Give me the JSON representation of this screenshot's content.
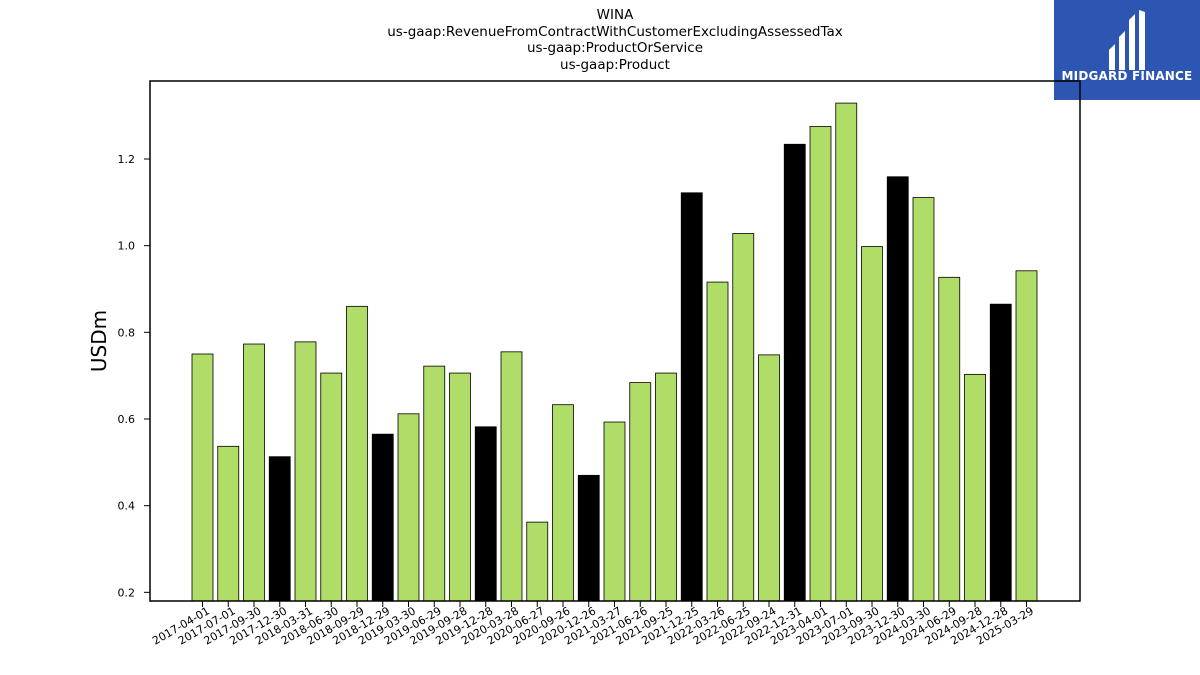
{
  "title_lines": [
    "WINA",
    "us-gaap:RevenueFromContractWithCustomerExcludingAssessedTax",
    "us-gaap:ProductOrService",
    "us-gaap:Product"
  ],
  "logo": {
    "text": "MIDGARD FINANCE",
    "bg_color": "#2d56b2"
  },
  "chart_data": {
    "type": "bar",
    "title": "WINA",
    "ylabel": "USDm",
    "xlabel": "",
    "ylim": [
      0.18,
      1.38
    ],
    "yticks": [
      0.2,
      0.4,
      0.6,
      0.8,
      1.0,
      1.2
    ],
    "grid": false,
    "colors": {
      "default": "#b0dc68",
      "highlight": "#000000",
      "edge": "#000000"
    },
    "categories": [
      "2017-04-01",
      "2017-07-01",
      "2017-09-30",
      "2017-12-30",
      "2018-03-31",
      "2018-06-30",
      "2018-09-29",
      "2018-12-29",
      "2019-03-30",
      "2019-06-29",
      "2019-09-28",
      "2019-12-28",
      "2020-03-28",
      "2020-06-27",
      "2020-09-26",
      "2020-12-26",
      "2021-03-27",
      "2021-06-26",
      "2021-09-25",
      "2021-12-25",
      "2022-03-26",
      "2022-06-25",
      "2022-09-24",
      "2022-12-31",
      "2023-04-01",
      "2023-07-01",
      "2023-09-30",
      "2023-12-30",
      "2024-03-30",
      "2024-06-29",
      "2024-09-28",
      "2024-12-28",
      "2025-03-29"
    ],
    "values": [
      0.75,
      0.537,
      0.773,
      0.513,
      0.778,
      0.706,
      0.86,
      0.565,
      0.612,
      0.722,
      0.706,
      0.582,
      0.755,
      0.362,
      0.633,
      0.47,
      0.593,
      0.684,
      0.706,
      1.122,
      0.916,
      1.028,
      0.748,
      1.234,
      1.275,
      1.329,
      0.998,
      1.159,
      1.111,
      0.927,
      0.703,
      0.865,
      0.942
    ],
    "highlight": [
      false,
      false,
      false,
      true,
      false,
      false,
      false,
      true,
      false,
      false,
      false,
      true,
      false,
      false,
      false,
      true,
      false,
      false,
      false,
      true,
      false,
      false,
      false,
      true,
      false,
      false,
      false,
      true,
      false,
      false,
      false,
      true,
      false
    ]
  }
}
